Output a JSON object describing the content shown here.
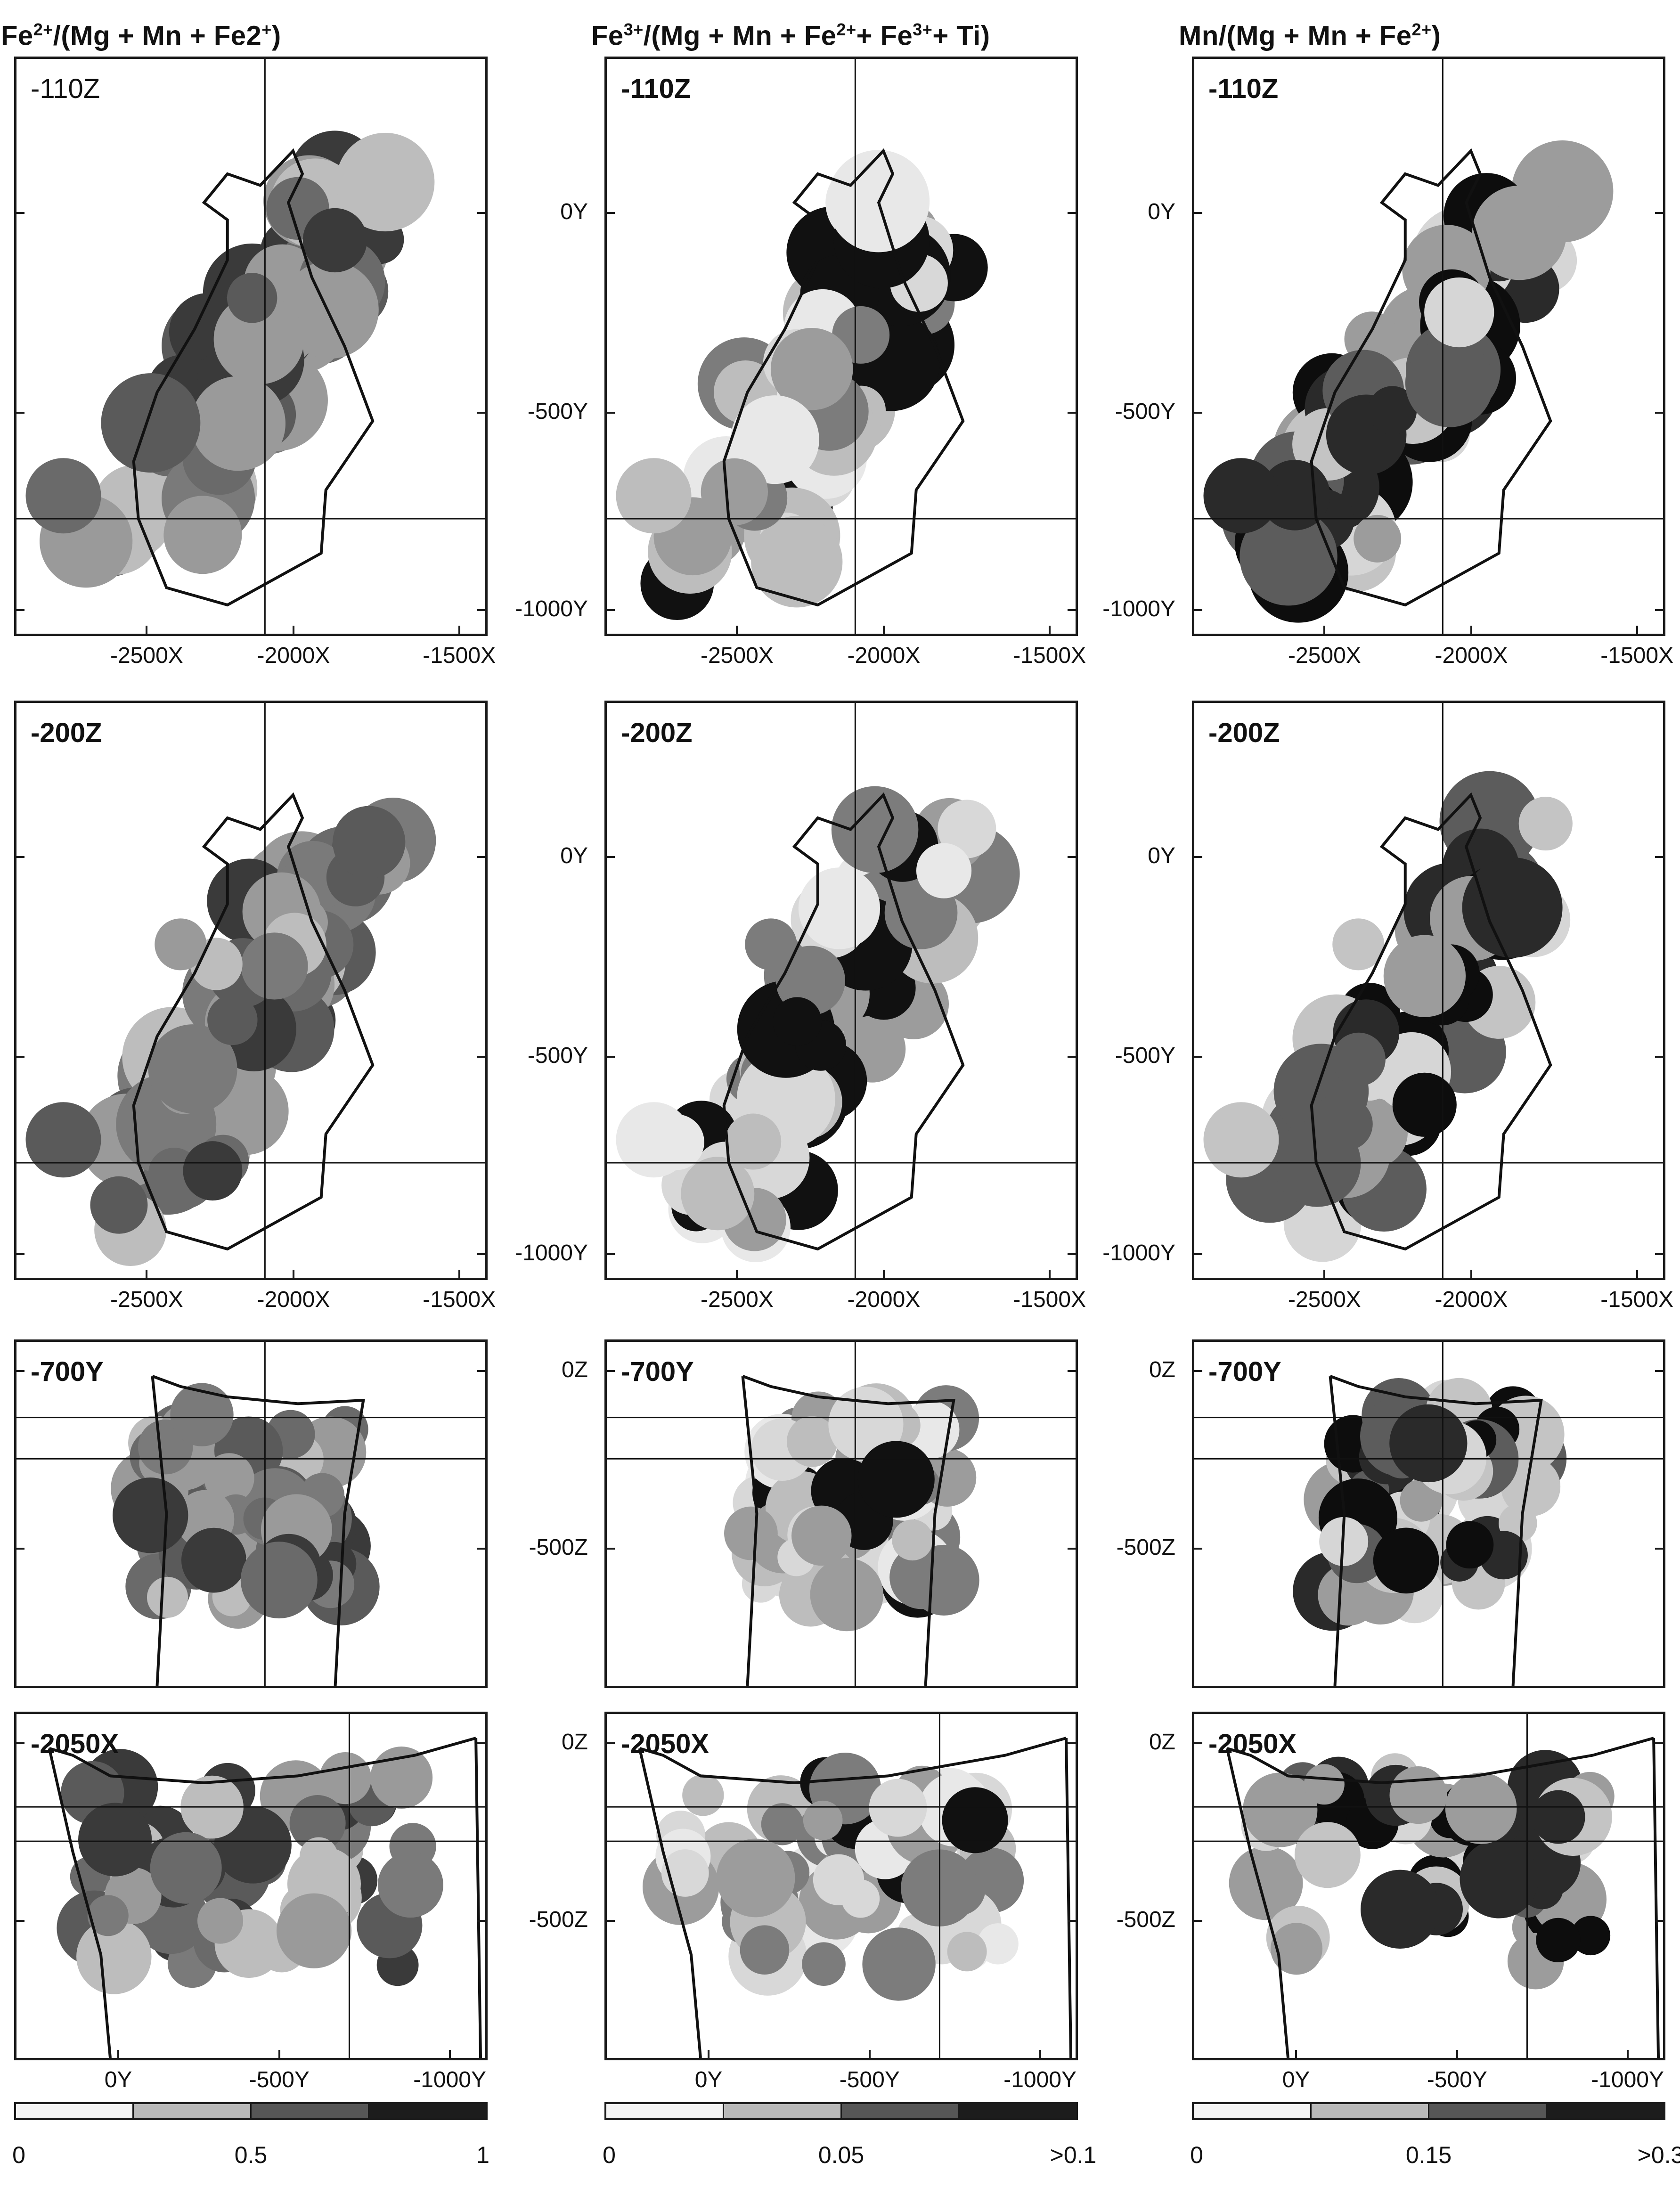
{
  "columns": [
    {
      "title_html": "Fe<sup>2+</sup>/(Mg + Mn + Fe2<sup>+</sup>)",
      "colorbar": {
        "min": "0",
        "mid": "0.5",
        "max": "1"
      }
    },
    {
      "title_html": "Fe<sup>3+</sup>/(Mg + Mn + Fe<sup>2+</sup>+ Fe<sup>3+</sup>+ Ti)",
      "colorbar": {
        "min": "0",
        "mid": "0.05",
        "max": ">0.1"
      }
    },
    {
      "title_html": "Mn/(Mg + Mn + Fe<sup>2+</sup>)",
      "colorbar": {
        "min": "0",
        "mid": "0.15",
        "max": ">0.3"
      }
    }
  ],
  "rows": [
    {
      "section": "-110Z",
      "section_first_col": "-110Z",
      "y_ticks": [
        "0Y",
        "-500Y",
        "-1000Y"
      ],
      "x_ticks": [
        "-2500X",
        "-2000X",
        "-1500X"
      ]
    },
    {
      "section": "-200Z",
      "y_ticks": [
        "0Y",
        "-500Y",
        "-1000Y"
      ],
      "x_ticks": [
        "-2500X",
        "-2000X",
        "-1500X"
      ]
    },
    {
      "section": "-700Y",
      "y_ticks": [
        "0Z",
        "-500Z"
      ],
      "x_ticks": []
    },
    {
      "section": "-2050X",
      "y_ticks": [
        "0Z",
        "-500Z"
      ],
      "x_ticks": [
        "0Y",
        "-500Y",
        "-1000Y"
      ]
    }
  ],
  "colorbar_shades": [
    "#f4f4f4",
    "#b9b9b9",
    "#8c8c8c",
    "#565656",
    "#1c1c1c"
  ]
}
